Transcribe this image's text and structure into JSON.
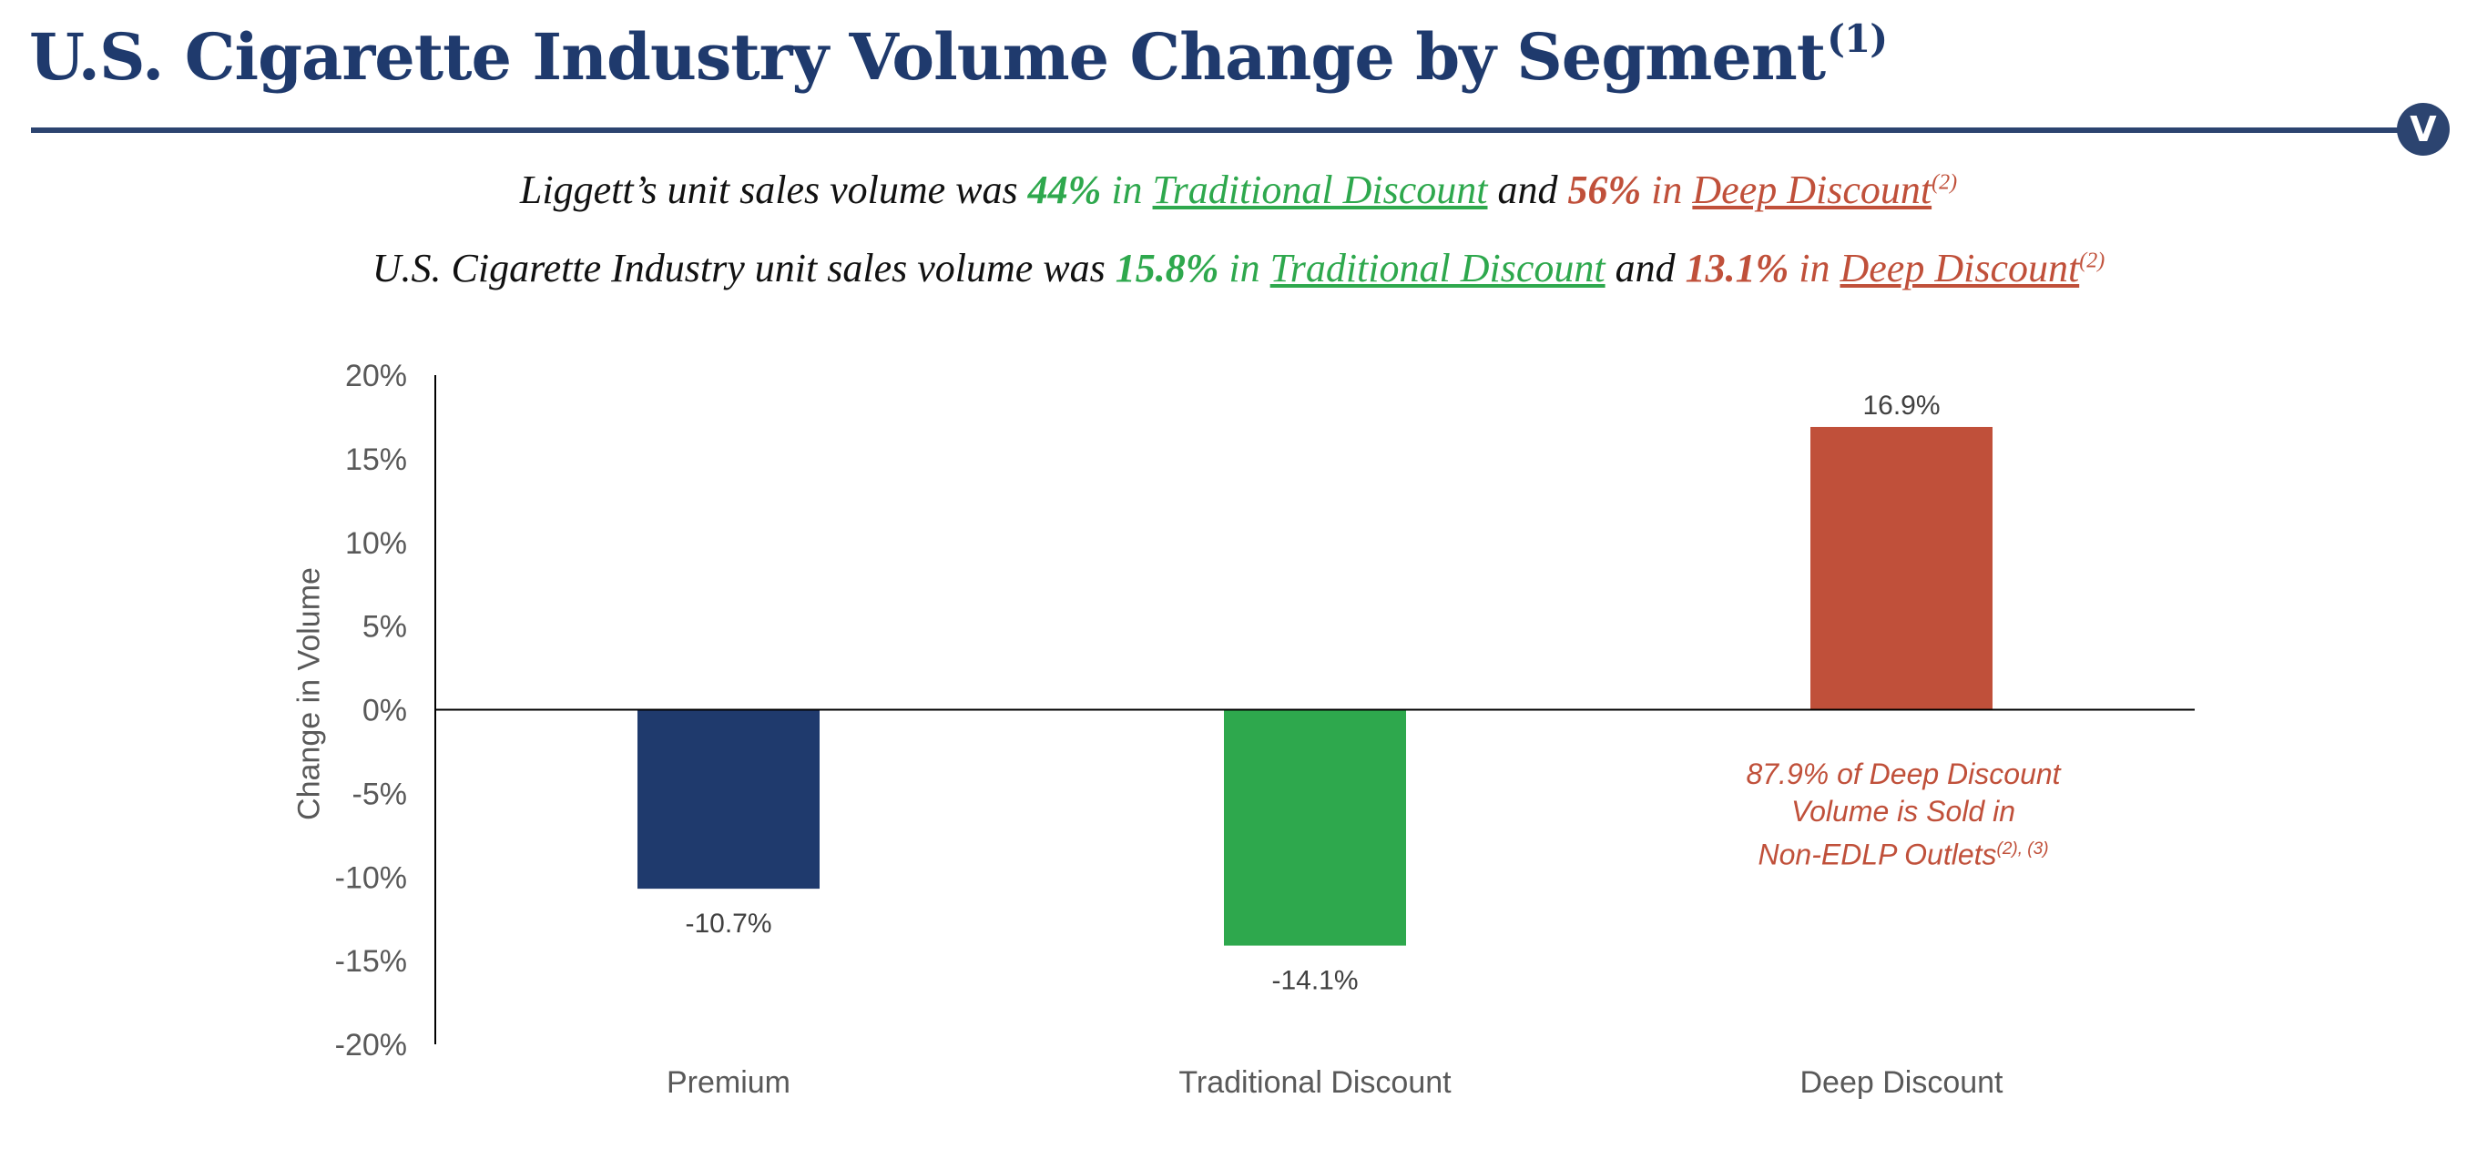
{
  "header": {
    "title": "U.S. Cigarette Industry Volume Change by Segment",
    "title_sup": "(1)",
    "logo_letter": "V"
  },
  "subtitle1": {
    "pre": "Liggett’s unit sales volume was ",
    "v1": "44%",
    "in1": " in ",
    "seg1": "Traditional Discount",
    "and": " and ",
    "v2": "56%",
    "in2": " in ",
    "seg2": "Deep Discount",
    "sup": "(2)"
  },
  "subtitle2": {
    "pre": "U.S. Cigarette Industry unit sales volume was ",
    "v1": "15.8%",
    "in1": " in ",
    "seg1": "Traditional Discount",
    "and": " and ",
    "v2": "13.1%",
    "in2": " in ",
    "seg2": "Deep Discount",
    "sup": "(2)"
  },
  "annotation": {
    "line1": "87.9% of Deep Discount",
    "line2": "Volume is Sold in",
    "line3": "Non-EDLP Outlets",
    "sup": "(2), (3)"
  },
  "colors": {
    "premium": "#1f3a6d",
    "traditional": "#2ea84d",
    "deep": "#c0503a",
    "title": "#1f3a6d"
  },
  "chart_data": {
    "type": "bar",
    "categories": [
      "Premium",
      "Traditional Discount",
      "Deep Discount"
    ],
    "values": [
      -10.7,
      -14.1,
      16.9
    ],
    "value_labels": [
      "-10.7%",
      "-14.1%",
      "16.9%"
    ],
    "ylabel": "Change in Volume",
    "ylim": [
      -20,
      20
    ],
    "yticks": [
      20,
      15,
      10,
      5,
      0,
      -5,
      -10,
      -15,
      -20
    ],
    "ytick_labels": [
      "20%",
      "15%",
      "10%",
      "5%",
      "0%",
      "-5%",
      "-10%",
      "-15%",
      "-20%"
    ],
    "grid": false,
    "legend": "none"
  }
}
